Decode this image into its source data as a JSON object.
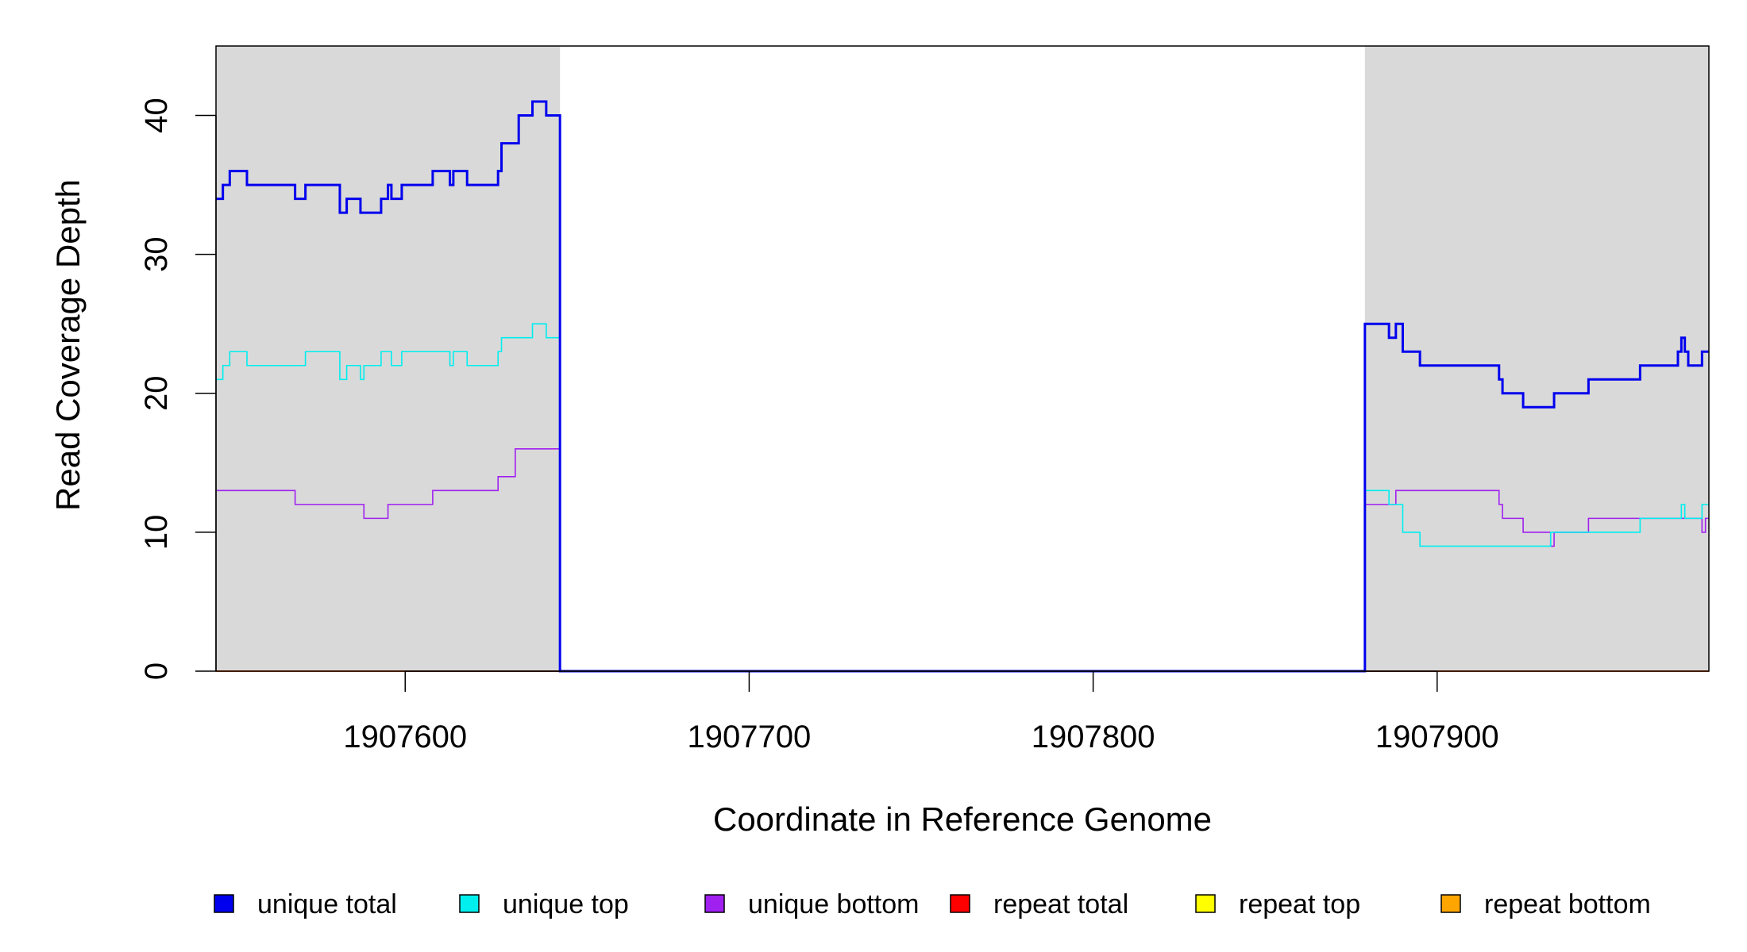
{
  "chart_data": {
    "type": "line",
    "title": "",
    "xlabel": "Coordinate in Reference Genome",
    "ylabel": "Read Coverage Depth",
    "xlim": [
      1907545,
      1907979
    ],
    "ylim": [
      0,
      45
    ],
    "x_ticks": [
      1907600,
      1907700,
      1907800,
      1907900
    ],
    "y_ticks": [
      0,
      10,
      20,
      30,
      40
    ],
    "shaded_regions": [
      {
        "x0": 1907545,
        "x1": 1907645,
        "color": "#d9d9d9"
      },
      {
        "x0": 1907879,
        "x1": 1907979,
        "color": "#d9d9d9"
      }
    ],
    "legend_position": "bottom",
    "series": [
      {
        "name": "unique total",
        "color": "#0000ee",
        "width": 3,
        "points": [
          [
            1907545,
            34
          ],
          [
            1907547,
            35
          ],
          [
            1907549,
            36
          ],
          [
            1907554,
            35
          ],
          [
            1907568,
            34
          ],
          [
            1907571,
            35
          ],
          [
            1907581,
            33
          ],
          [
            1907583,
            34
          ],
          [
            1907587,
            33
          ],
          [
            1907593,
            34
          ],
          [
            1907595,
            35
          ],
          [
            1907596,
            34
          ],
          [
            1907599,
            35
          ],
          [
            1907608,
            36
          ],
          [
            1907613,
            35
          ],
          [
            1907614,
            36
          ],
          [
            1907618,
            35
          ],
          [
            1907627,
            36
          ],
          [
            1907628,
            38
          ],
          [
            1907633,
            40
          ],
          [
            1907637,
            41
          ],
          [
            1907641,
            40
          ],
          [
            1907644,
            40
          ],
          [
            1907645,
            0
          ],
          [
            1907879,
            0
          ],
          [
            1907879,
            25
          ],
          [
            1907886,
            24
          ],
          [
            1907888,
            25
          ],
          [
            1907890,
            23
          ],
          [
            1907895,
            22
          ],
          [
            1907918,
            21
          ],
          [
            1907919,
            20
          ],
          [
            1907925,
            19
          ],
          [
            1907934,
            20
          ],
          [
            1907944,
            21
          ],
          [
            1907959,
            22
          ],
          [
            1907970,
            23
          ],
          [
            1907971,
            24
          ],
          [
            1907972,
            23
          ],
          [
            1907973,
            22
          ],
          [
            1907977,
            23
          ],
          [
            1907979,
            23
          ]
        ]
      },
      {
        "name": "unique top",
        "color": "#00eeee",
        "width": 1.6,
        "points": [
          [
            1907545,
            21
          ],
          [
            1907547,
            22
          ],
          [
            1907549,
            23
          ],
          [
            1907554,
            22
          ],
          [
            1907571,
            23
          ],
          [
            1907581,
            21
          ],
          [
            1907583,
            22
          ],
          [
            1907587,
            21
          ],
          [
            1907588,
            22
          ],
          [
            1907593,
            23
          ],
          [
            1907596,
            22
          ],
          [
            1907599,
            23
          ],
          [
            1907613,
            22
          ],
          [
            1907614,
            23
          ],
          [
            1907618,
            22
          ],
          [
            1907627,
            23
          ],
          [
            1907628,
            24
          ],
          [
            1907637,
            25
          ],
          [
            1907641,
            24
          ],
          [
            1907644,
            24
          ],
          [
            1907645,
            0
          ],
          [
            1907879,
            0
          ],
          [
            1907879,
            13
          ],
          [
            1907886,
            12
          ],
          [
            1907890,
            10
          ],
          [
            1907895,
            9
          ],
          [
            1907933,
            10
          ],
          [
            1907959,
            11
          ],
          [
            1907971,
            12
          ],
          [
            1907972,
            11
          ],
          [
            1907977,
            12
          ],
          [
            1907979,
            12
          ]
        ]
      },
      {
        "name": "unique bottom",
        "color": "#a020f0",
        "width": 1.6,
        "points": [
          [
            1907545,
            13
          ],
          [
            1907568,
            12
          ],
          [
            1907588,
            11
          ],
          [
            1907595,
            12
          ],
          [
            1907608,
            13
          ],
          [
            1907627,
            14
          ],
          [
            1907632,
            16
          ],
          [
            1907644,
            16
          ],
          [
            1907645,
            0
          ],
          [
            1907879,
            0
          ],
          [
            1907879,
            12
          ],
          [
            1907888,
            13
          ],
          [
            1907918,
            12
          ],
          [
            1907919,
            11
          ],
          [
            1907925,
            10
          ],
          [
            1907933,
            9
          ],
          [
            1907934,
            10
          ],
          [
            1907944,
            11
          ],
          [
            1907973,
            11
          ],
          [
            1907977,
            10
          ],
          [
            1907978,
            11
          ],
          [
            1907979,
            11
          ]
        ]
      },
      {
        "name": "repeat total",
        "color": "#ff0000",
        "width": 1.6,
        "points": [
          [
            1907545,
            0
          ],
          [
            1907979,
            0
          ]
        ]
      },
      {
        "name": "repeat top",
        "color": "#ffff00",
        "width": 1.6,
        "points": [
          [
            1907545,
            0
          ],
          [
            1907979,
            0
          ]
        ]
      },
      {
        "name": "repeat bottom",
        "color": "#ffa500",
        "width": 2,
        "points": [
          [
            1907545,
            0
          ],
          [
            1907979,
            0
          ]
        ]
      }
    ]
  }
}
